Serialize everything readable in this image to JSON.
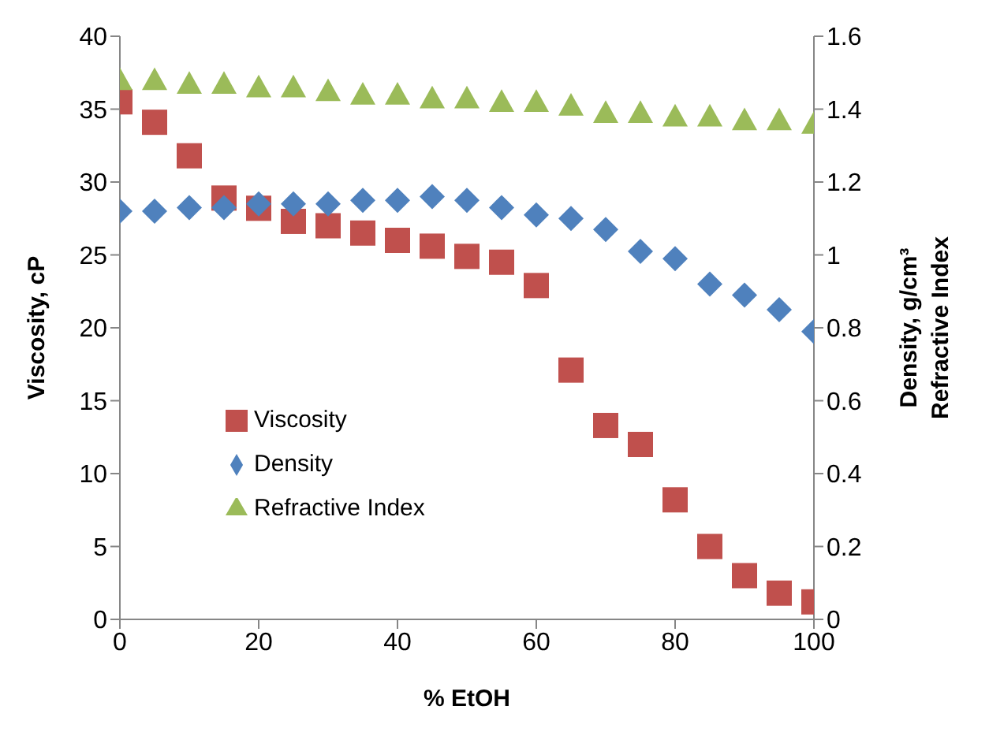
{
  "chart_data": {
    "type": "scatter",
    "xlabel": "% EtOH",
    "ylabel": "Viscosity, cP",
    "y2label": "Density, g/cm³\nRefractive Index",
    "x": [
      0,
      5,
      10,
      15,
      20,
      25,
      30,
      35,
      40,
      45,
      50,
      55,
      60,
      65,
      70,
      75,
      80,
      85,
      90,
      95,
      100
    ],
    "series": [
      {
        "name": "Viscosity",
        "color": "#c0504d",
        "marker": "square",
        "values": [
          35.5,
          34.1,
          31.8,
          28.9,
          28.2,
          27.3,
          27.0,
          26.5,
          26.0,
          25.6,
          24.9,
          24.5,
          22.9,
          17.1,
          13.3,
          12.0,
          8.2,
          5.0,
          3.0,
          1.8,
          1.2
        ]
      },
      {
        "name": "Density",
        "color": "#4f81bd",
        "marker": "diamond",
        "axis": "y2",
        "values": [
          1.12,
          1.12,
          1.13,
          1.13,
          1.14,
          1.14,
          1.14,
          1.15,
          1.15,
          1.16,
          1.15,
          1.13,
          1.11,
          1.1,
          1.07,
          1.01,
          0.99,
          0.92,
          0.89,
          0.85,
          0.79
        ]
      },
      {
        "name": "Refractive Index",
        "color": "#9bbb59",
        "marker": "triangle",
        "axis": "y2",
        "values": [
          1.48,
          1.48,
          1.47,
          1.47,
          1.46,
          1.46,
          1.45,
          1.44,
          1.44,
          1.43,
          1.43,
          1.42,
          1.42,
          1.41,
          1.39,
          1.39,
          1.38,
          1.38,
          1.37,
          1.37,
          1.36
        ]
      }
    ],
    "xlim": [
      0,
      100
    ],
    "xticks": [
      0,
      20,
      40,
      60,
      80,
      100
    ],
    "ylim": [
      0,
      40
    ],
    "yticks": [
      0,
      5,
      10,
      15,
      20,
      25,
      30,
      35,
      40
    ],
    "y2lim": [
      0,
      1.6
    ],
    "y2ticks": [
      0,
      0.2,
      0.4,
      0.6,
      0.8,
      1,
      1.2,
      1.4,
      1.6
    ],
    "grid": false,
    "legend": "left"
  }
}
